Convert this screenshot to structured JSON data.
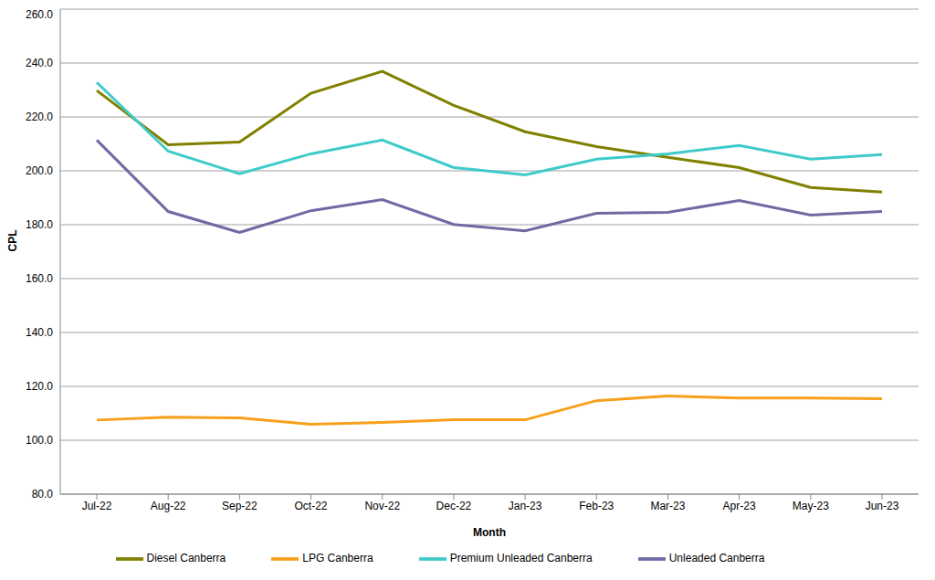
{
  "chart_data": {
    "type": "line",
    "x_label": "Month",
    "y_label": "CPL",
    "categories": [
      "Jul-22",
      "Aug-22",
      "Sep-22",
      "Oct-22",
      "Nov-22",
      "Dec-22",
      "Jan-23",
      "Feb-23",
      "Mar-23",
      "Apr-23",
      "May-23",
      "Jun-23"
    ],
    "series": [
      {
        "name": "Diesel Canberra",
        "color": "#808000",
        "values": [
          229.8,
          209.7,
          210.7,
          228.8,
          236.9,
          224.3,
          214.5,
          209.0,
          205.0,
          201.2,
          193.8,
          192.1
        ]
      },
      {
        "name": "Unleaded Canberra",
        "color": "#6e6aa3",
        "values": [
          211.4,
          184.9,
          177.1,
          185.2,
          189.3,
          180.1,
          177.7,
          184.2,
          184.6,
          189.0,
          183.6,
          184.9
        ]
      },
      {
        "name": "Premium Unleaded Canberra",
        "color": "#3fcaca",
        "values": [
          232.8,
          207.3,
          198.9,
          206.3,
          211.4,
          201.2,
          198.5,
          204.3,
          206.3,
          209.4,
          204.3,
          206.0
        ]
      },
      {
        "name": "LPG Canberra",
        "color": "#f8a01c",
        "values": [
          107.5,
          108.6,
          108.3,
          105.9,
          106.6,
          107.6,
          107.6,
          114.7,
          116.4,
          115.7,
          115.7,
          115.4
        ]
      }
    ],
    "ylim": [
      80,
      260
    ],
    "yticks": [
      {
        "value": 80,
        "label": "80.0"
      },
      {
        "value": 100,
        "label": "100.0"
      },
      {
        "value": 120,
        "label": "120.0"
      },
      {
        "value": 140,
        "label": "140.0"
      },
      {
        "value": 160,
        "label": "160.0"
      },
      {
        "value": 180,
        "label": "180.0"
      },
      {
        "value": 200,
        "label": "200.0"
      },
      {
        "value": 220,
        "label": "220.0"
      },
      {
        "value": 240,
        "label": "240.0"
      },
      {
        "value": 260,
        "label": "260.0"
      }
    ],
    "grid": true,
    "legend": "bottom"
  }
}
